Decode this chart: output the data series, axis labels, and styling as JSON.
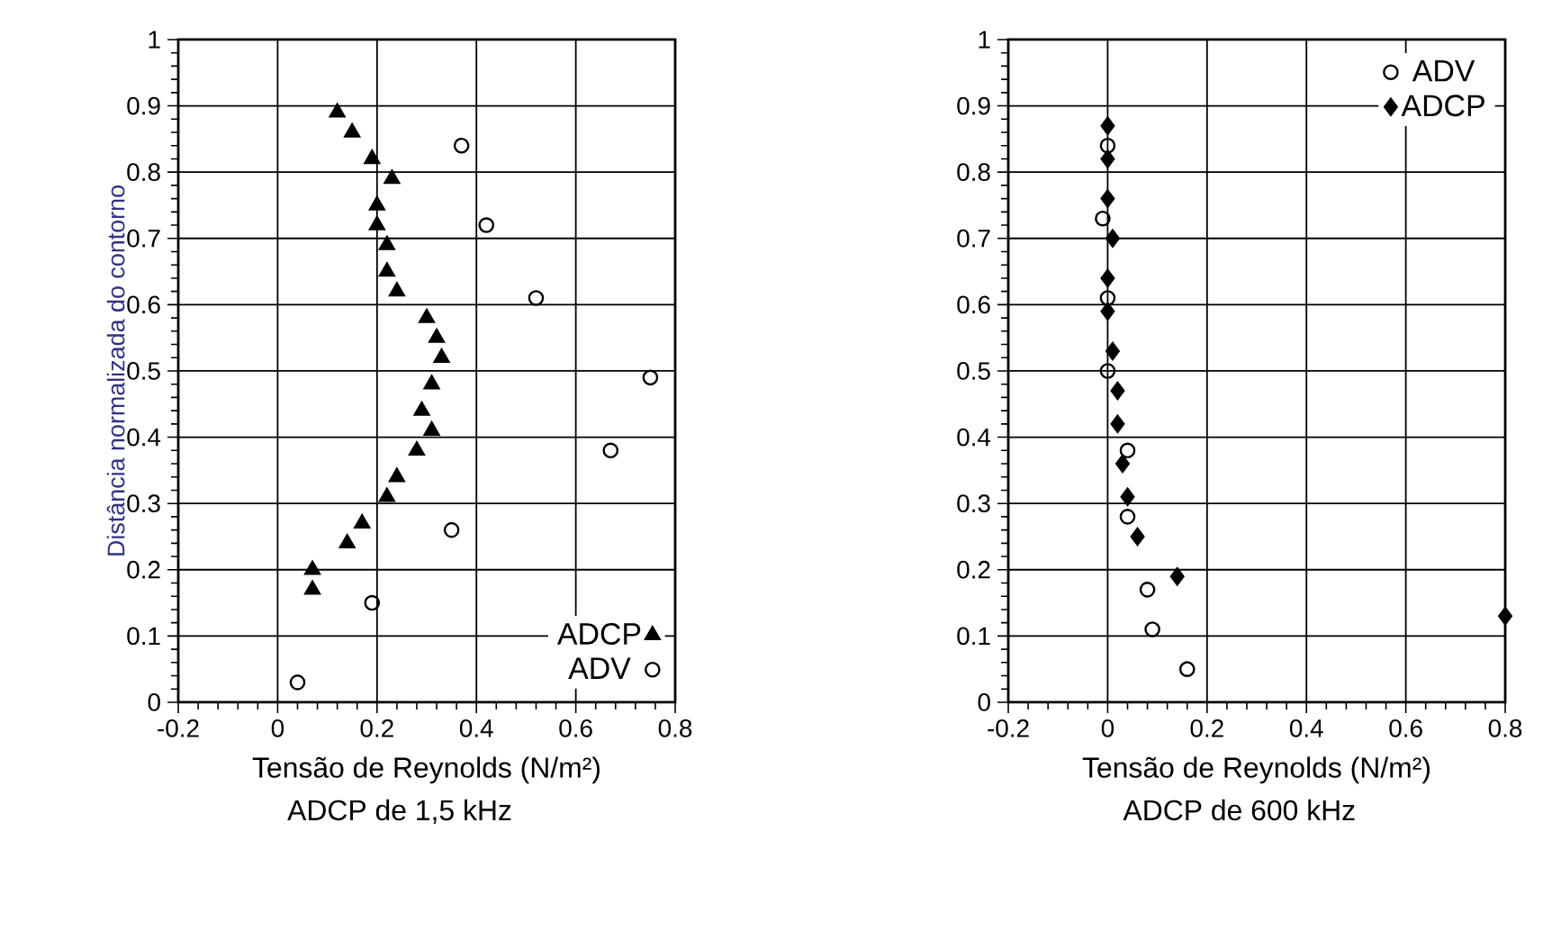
{
  "chart_data": [
    {
      "type": "scatter",
      "ylabel": "Distância normalizada do contorno",
      "xlabel": "Tensão de Reynolds (N/m²)",
      "annotations": [
        "ADCP de 1,5 kHz"
      ],
      "xlim": [
        -0.2,
        0.8
      ],
      "ylim": [
        0,
        1
      ],
      "xticks": [
        -0.2,
        0,
        0.2,
        0.4,
        0.6,
        0.8
      ],
      "yticks": [
        0,
        0.1,
        0.2,
        0.3,
        0.4,
        0.5,
        0.6,
        0.7,
        0.8,
        0.9,
        1
      ],
      "grid": true,
      "legend": "bottom right",
      "series": [
        {
          "name": "ADCP",
          "color": "#000000",
          "marker": "triangle",
          "x": [
            0.12,
            0.15,
            0.19,
            0.23,
            0.2,
            0.2,
            0.22,
            0.22,
            0.24,
            0.3,
            0.32,
            0.33,
            0.31,
            0.29,
            0.31,
            0.28,
            0.24,
            0.22,
            0.17,
            0.14,
            0.07,
            0.07
          ],
          "values": [
            0.89,
            0.86,
            0.82,
            0.79,
            0.75,
            0.72,
            0.69,
            0.65,
            0.62,
            0.58,
            0.55,
            0.52,
            0.48,
            0.44,
            0.41,
            0.38,
            0.34,
            0.31,
            0.27,
            0.24,
            0.2,
            0.17
          ]
        },
        {
          "name": "ADV",
          "color": "#000000",
          "marker": "circle",
          "x": [
            0.37,
            0.42,
            0.52,
            0.75,
            0.67,
            0.35,
            0.19,
            0.04
          ],
          "values": [
            0.84,
            0.72,
            0.61,
            0.49,
            0.38,
            0.26,
            0.15,
            0.03
          ]
        }
      ]
    },
    {
      "type": "scatter",
      "xlabel": "Tensão de Reynolds (N/m²)",
      "annotations": [
        "ADCP de 600 kHz"
      ],
      "xlim": [
        -0.2,
        0.8
      ],
      "ylim": [
        0,
        1
      ],
      "xticks": [
        -0.2,
        0,
        0.2,
        0.4,
        0.6,
        0.8
      ],
      "yticks": [
        0,
        0.1,
        0.2,
        0.3,
        0.4,
        0.5,
        0.6,
        0.7,
        0.8,
        0.9,
        1
      ],
      "grid": true,
      "legend": "top right",
      "series": [
        {
          "name": "ADV",
          "color": "#000000",
          "marker": "circle",
          "x": [
            0.0,
            -0.01,
            0.0,
            0.0,
            0.04,
            0.04,
            0.08,
            0.09,
            0.16
          ],
          "values": [
            0.84,
            0.73,
            0.61,
            0.5,
            0.38,
            0.28,
            0.17,
            0.11,
            0.05
          ]
        },
        {
          "name": "ADCP",
          "color": "#000000",
          "marker": "diamond",
          "x": [
            0.0,
            0.0,
            0.0,
            0.01,
            0.0,
            0.0,
            0.01,
            0.02,
            0.02,
            0.03,
            0.04,
            0.06,
            0.14,
            0.8
          ],
          "values": [
            0.87,
            0.82,
            0.76,
            0.7,
            0.64,
            0.59,
            0.53,
            0.47,
            0.42,
            0.36,
            0.31,
            0.25,
            0.19,
            0.13
          ]
        }
      ]
    }
  ]
}
